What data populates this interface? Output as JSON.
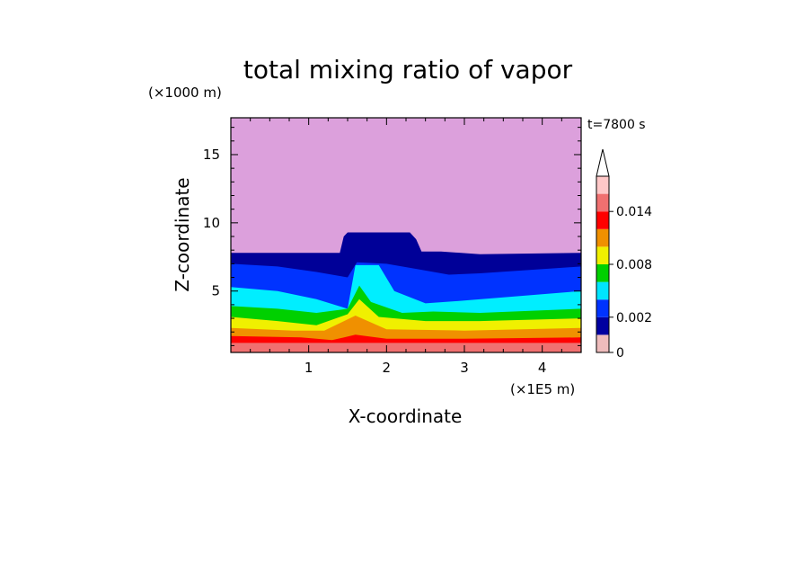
{
  "chart_data": {
    "type": "heatmap",
    "title": "total mixing ratio of vapor",
    "xlabel": "X-coordinate",
    "ylabel": "Z-coordinate",
    "x_unit": "(×1E5 m)",
    "y_unit": "(×1000 m)",
    "time_label": "t=7800 s",
    "xlim": [
      0,
      4.5
    ],
    "ylim": [
      0.5,
      17.7
    ],
    "x_ticks": [
      "1",
      "2",
      "3",
      "4"
    ],
    "y_ticks": [
      "5",
      "10",
      "15"
    ],
    "colorbar": {
      "levels": [
        0,
        0.001,
        0.002,
        0.004,
        0.006,
        0.008,
        0.01,
        0.012,
        0.014,
        0.016
      ],
      "tick_labels": [
        "0",
        "0.002",
        "0.008",
        "0.014"
      ],
      "extend": "max",
      "colors": [
        "#eebcbc",
        "#0000a0",
        "#0033ff",
        "#00e5ff",
        "#00d000",
        "#f0f000",
        "#f09000",
        "#ff0000",
        "#f07070",
        "#ffc8c8"
      ]
    },
    "background_color": "#dca0dc",
    "contours": [
      {
        "level_color": "#000098",
        "z_top_profile": [
          [
            0,
            7.8
          ],
          [
            1.4,
            7.8
          ],
          [
            1.45,
            9.0
          ],
          [
            1.5,
            9.3
          ],
          [
            2.3,
            9.3
          ],
          [
            2.38,
            8.8
          ],
          [
            2.45,
            7.9
          ],
          [
            2.7,
            7.9
          ],
          [
            3.2,
            7.7
          ],
          [
            4.5,
            7.8
          ]
        ]
      },
      {
        "level_color": "#0033ff",
        "z_top_profile": [
          [
            0,
            7.0
          ],
          [
            0.6,
            6.8
          ],
          [
            1.1,
            6.4
          ],
          [
            1.5,
            6.0
          ],
          [
            1.62,
            7.1
          ],
          [
            2.0,
            7.0
          ],
          [
            2.4,
            6.6
          ],
          [
            2.8,
            6.2
          ],
          [
            3.2,
            6.3
          ],
          [
            4.5,
            6.8
          ]
        ]
      },
      {
        "level_color": "#00eeff",
        "z_top_profile": [
          [
            0,
            5.3
          ],
          [
            0.6,
            5.0
          ],
          [
            1.1,
            4.4
          ],
          [
            1.5,
            3.7
          ],
          [
            1.6,
            6.9
          ],
          [
            1.9,
            6.9
          ],
          [
            2.1,
            5.0
          ],
          [
            2.5,
            4.1
          ],
          [
            3.0,
            4.3
          ],
          [
            4.5,
            5.0
          ]
        ]
      },
      {
        "level_color": "#00d000",
        "z_top_profile": [
          [
            0,
            3.9
          ],
          [
            0.6,
            3.7
          ],
          [
            1.1,
            3.4
          ],
          [
            1.5,
            3.7
          ],
          [
            1.65,
            5.4
          ],
          [
            1.8,
            4.2
          ],
          [
            2.2,
            3.4
          ],
          [
            2.6,
            3.5
          ],
          [
            3.2,
            3.4
          ],
          [
            4.5,
            3.7
          ]
        ]
      },
      {
        "level_color": "#f0f000",
        "z_top_profile": [
          [
            0,
            3.1
          ],
          [
            0.6,
            2.8
          ],
          [
            1.1,
            2.5
          ],
          [
            1.5,
            3.3
          ],
          [
            1.65,
            4.4
          ],
          [
            1.9,
            3.1
          ],
          [
            2.5,
            2.8
          ],
          [
            3.2,
            2.8
          ],
          [
            4.5,
            3.0
          ]
        ]
      },
      {
        "level_color": "#f09000",
        "z_top_profile": [
          [
            0,
            2.3
          ],
          [
            0.8,
            2.1
          ],
          [
            1.2,
            2.1
          ],
          [
            1.6,
            3.2
          ],
          [
            2.0,
            2.2
          ],
          [
            3.0,
            2.1
          ],
          [
            4.5,
            2.3
          ]
        ]
      },
      {
        "level_color": "#ff0000",
        "z_top_profile": [
          [
            0,
            1.7
          ],
          [
            0.9,
            1.6
          ],
          [
            1.3,
            1.4
          ],
          [
            1.6,
            1.8
          ],
          [
            2.0,
            1.5
          ],
          [
            3.0,
            1.5
          ],
          [
            4.5,
            1.6
          ]
        ]
      },
      {
        "level_color": "#f07070",
        "z_top_profile": [
          [
            0,
            1.2
          ],
          [
            4.5,
            1.2
          ]
        ]
      }
    ]
  }
}
